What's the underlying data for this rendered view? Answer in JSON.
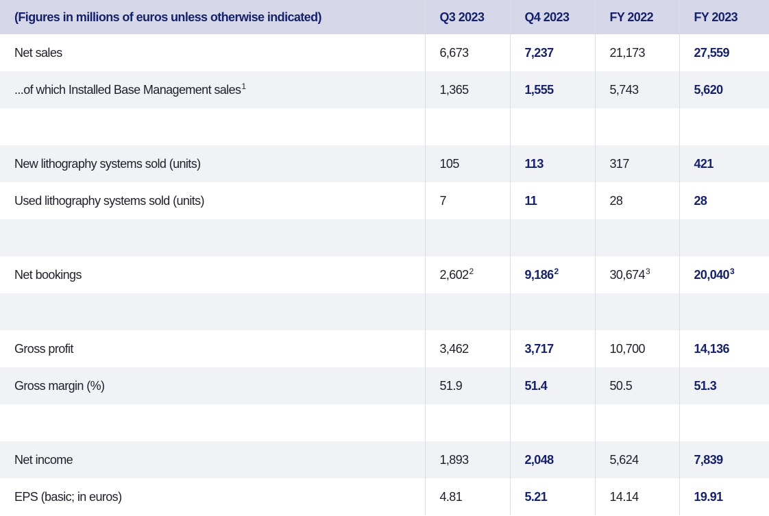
{
  "table": {
    "header": {
      "label": "(Figures in millions of euros unless otherwise indicated)",
      "columns": [
        "Q3 2023",
        "Q4 2023",
        "FY 2022",
        "FY 2023"
      ]
    },
    "rows": [
      {
        "label": "Net sales",
        "label_sup": "",
        "values": [
          {
            "v": "6,673",
            "sup": ""
          },
          {
            "v": "7,237",
            "sup": ""
          },
          {
            "v": "21,173",
            "sup": ""
          },
          {
            "v": "27,559",
            "sup": ""
          }
        ]
      },
      {
        "label": "...of which Installed Base Management sales",
        "label_sup": "1",
        "values": [
          {
            "v": "1,365",
            "sup": ""
          },
          {
            "v": "1,555",
            "sup": ""
          },
          {
            "v": "5,743",
            "sup": ""
          },
          {
            "v": "5,620",
            "sup": ""
          }
        ]
      },
      {
        "spacer": true
      },
      {
        "label": "New lithography systems sold (units)",
        "label_sup": "",
        "values": [
          {
            "v": "105",
            "sup": ""
          },
          {
            "v": "113",
            "sup": ""
          },
          {
            "v": "317",
            "sup": ""
          },
          {
            "v": "421",
            "sup": ""
          }
        ]
      },
      {
        "label": "Used lithography systems sold (units)",
        "label_sup": "",
        "values": [
          {
            "v": "7",
            "sup": ""
          },
          {
            "v": "11",
            "sup": ""
          },
          {
            "v": "28",
            "sup": ""
          },
          {
            "v": "28",
            "sup": ""
          }
        ]
      },
      {
        "spacer": true
      },
      {
        "label": "Net bookings",
        "label_sup": "",
        "values": [
          {
            "v": "2,602",
            "sup": "2"
          },
          {
            "v": "9,186",
            "sup": "2"
          },
          {
            "v": "30,674",
            "sup": "3"
          },
          {
            "v": "20,040",
            "sup": "3"
          }
        ]
      },
      {
        "spacer": true
      },
      {
        "label": "Gross profit",
        "label_sup": "",
        "values": [
          {
            "v": "3,462",
            "sup": ""
          },
          {
            "v": "3,717",
            "sup": ""
          },
          {
            "v": "10,700",
            "sup": ""
          },
          {
            "v": "14,136",
            "sup": ""
          }
        ]
      },
      {
        "label": "Gross margin (%)",
        "label_sup": "",
        "values": [
          {
            "v": "51.9",
            "sup": ""
          },
          {
            "v": "51.4",
            "sup": ""
          },
          {
            "v": "50.5",
            "sup": ""
          },
          {
            "v": "51.3",
            "sup": ""
          }
        ]
      },
      {
        "spacer": true
      },
      {
        "label": "Net income",
        "label_sup": "",
        "values": [
          {
            "v": "1,893",
            "sup": ""
          },
          {
            "v": "2,048",
            "sup": ""
          },
          {
            "v": "5,624",
            "sup": ""
          },
          {
            "v": "7,839",
            "sup": ""
          }
        ]
      },
      {
        "label": "EPS (basic; in euros)",
        "label_sup": "",
        "values": [
          {
            "v": "4.81",
            "sup": ""
          },
          {
            "v": "5.21",
            "sup": ""
          },
          {
            "v": "14.14",
            "sup": ""
          },
          {
            "v": "19.91",
            "sup": ""
          }
        ]
      }
    ],
    "highlight_columns": [
      1,
      3
    ],
    "colors": {
      "header_bg": "#d6d8ea",
      "header_text": "#15216b",
      "row_shade": "#f1f2f6",
      "highlight_text": "#15216b",
      "body_text": "#1f1f2b"
    }
  }
}
